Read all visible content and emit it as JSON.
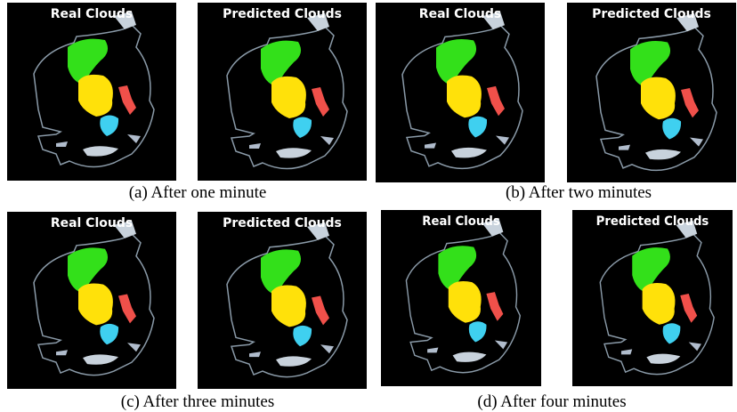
{
  "panels": [
    {
      "images": [
        {
          "label": "Real Clouds"
        },
        {
          "label": "Predicted Clouds"
        }
      ],
      "caption": "(a) After one minute"
    },
    {
      "images": [
        {
          "label": "Real Clouds"
        },
        {
          "label": "Predicted Clouds"
        }
      ],
      "caption": "(b) After two minutes"
    },
    {
      "images": [
        {
          "label": "Real Clouds"
        },
        {
          "label": "Predicted Clouds"
        }
      ],
      "caption": "(c) After three minutes"
    },
    {
      "images": [
        {
          "label": "Real Clouds"
        },
        {
          "label": "Predicted Clouds"
        }
      ],
      "caption": "(d) After four minutes"
    }
  ]
}
